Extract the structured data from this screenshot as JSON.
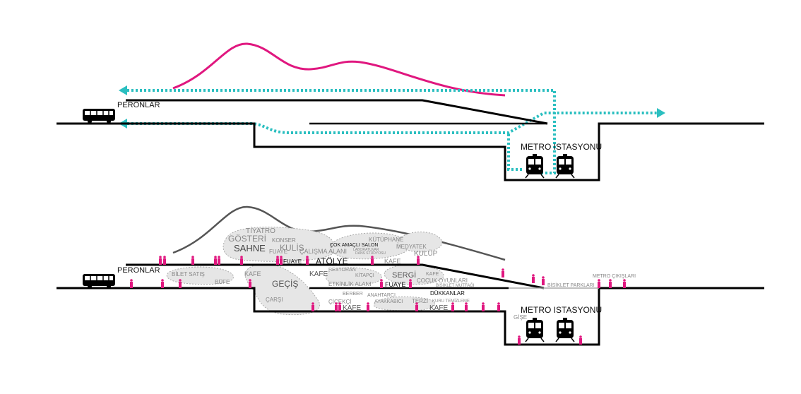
{
  "colors": {
    "flow": "#e0177f",
    "path": "#2bbfc0",
    "people": "#e0177f",
    "zone": "#e6e6e6",
    "structure": "#000000"
  },
  "top": {
    "peronlar": "PERONLAR",
    "metro": "METRO ISTASYONU"
  },
  "bottom": {
    "peronlar": "PERONLAR",
    "metro": "METRO ISTASYONU",
    "labels": {
      "tiyatro": "TİYATRO",
      "gosteri": "GÖSTERİ",
      "sahne": "SAHNE",
      "konser": "KONSER",
      "kulis": "KULİS",
      "fuaye1": "FUAYE",
      "calisma": "ÇALIŞMA ALANI",
      "cok_amacli": "ÇOK AMAÇLI SALON",
      "laboratuvar": "LABORATUVAR",
      "dans": "DANS STÜDYOSU",
      "kutuphane": "KÜTÜPHANE",
      "medyatek": "MEDYATEK",
      "kulup": "KULÜP",
      "fuaye2": "FUAYE",
      "atolye": "ATÖLYE",
      "kafe1": "KAFE",
      "bilet": "BİLET SATIŞ",
      "bufe": "BÜFE",
      "kafe2": "KAFE",
      "gecis": "GEÇİŞ",
      "carsi": "ÇARŞI",
      "kafe3": "KAFE",
      "restoran": "RESTORAN",
      "kitapci": "KİTAPÇI",
      "etkinlik": "ETKİNLİK ALANI",
      "fuaye3": "FUAYE",
      "sergi": "SERGİ",
      "kafe4": "KAFE",
      "cocuk": "ÇOCUK OYUNLARI",
      "bisiklet_mutfagi": "BİSİKLET MUTFAĞI",
      "berber": "BERBER",
      "anahtarci": "ANAHTARCI",
      "cicekci": "ÇİÇEKÇİ",
      "kafe5": "KAFE",
      "ayakkabici": "AYAKKABICI",
      "terzi": "TERZİ",
      "dukkanlar": "DÜKKANLAR",
      "kuru": "KURU TEMİZLEME",
      "kafe6": "KAFE",
      "bisiklet_parklari": "BİSİKLET PARKLARI",
      "metro_cikislari": "METRO ÇIKIŞLARI",
      "gise": "GİŞE"
    }
  }
}
